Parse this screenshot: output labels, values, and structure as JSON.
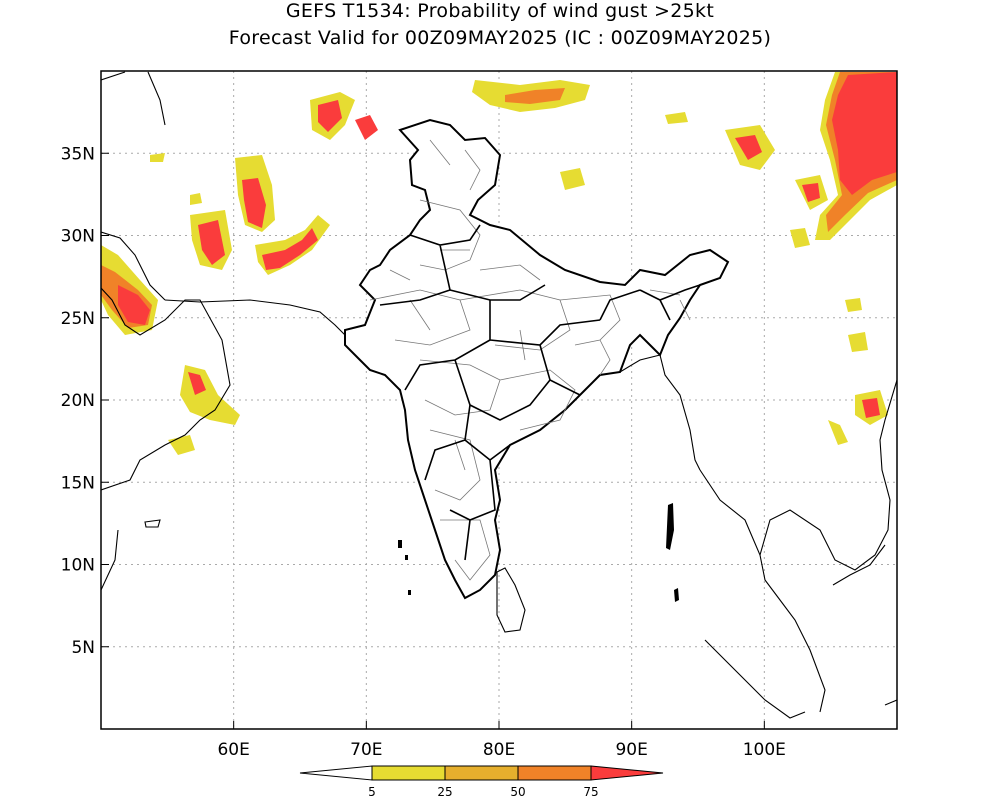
{
  "title": {
    "line1": "GEFS T1534: Probability of wind gust >25kt",
    "line2": "Forecast Valid for 00Z09MAY2025 (IC : 00Z09MAY2025)"
  },
  "map": {
    "lon_range": [
      50,
      110
    ],
    "lat_range": [
      0,
      40
    ],
    "lat_ticks": [
      {
        "value": 35,
        "label": "35N"
      },
      {
        "value": 30,
        "label": "30N"
      },
      {
        "value": 25,
        "label": "25N"
      },
      {
        "value": 20,
        "label": "20N"
      },
      {
        "value": 15,
        "label": "15N"
      },
      {
        "value": 10,
        "label": "10N"
      },
      {
        "value": 5,
        "label": "5N"
      }
    ],
    "lon_ticks": [
      {
        "value": 60,
        "label": "60E"
      },
      {
        "value": 70,
        "label": "70E"
      },
      {
        "value": 80,
        "label": "80E"
      },
      {
        "value": 90,
        "label": "90E"
      },
      {
        "value": 100,
        "label": "100E"
      }
    ],
    "grid": true
  },
  "colorbar": {
    "levels": [
      "5",
      "25",
      "50",
      "75"
    ],
    "colors": [
      "#e6dc32",
      "#e6af2d",
      "#f08228",
      "#fa3c3c"
    ]
  }
}
